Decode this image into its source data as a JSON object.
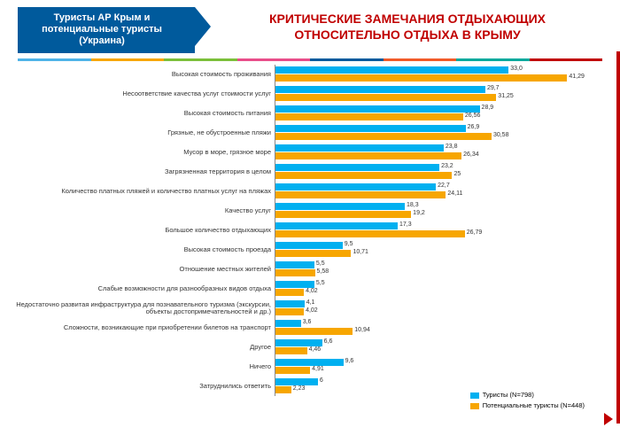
{
  "badge": {
    "line1": "Туристы АР Крым и",
    "line2": "потенциальные туристы",
    "line3": "(Украина)"
  },
  "title": "КРИТИЧЕСКИЕ ЗАМЕЧАНИЯ ОТДЫХАЮЩИХ ОТНОСИТЕЛЬНО ОТДЫХА В КРЫМУ",
  "stripe_colors": [
    "#4fb3e8",
    "#f7a600",
    "#7bbf3a",
    "#e94e8a",
    "#005a9c",
    "#f15a29",
    "#00a99d",
    "#c00000"
  ],
  "chart": {
    "type": "bar",
    "max": 45,
    "bar_colors": [
      "#00b0f0",
      "#f7a600"
    ],
    "value_color": "#333333",
    "label_fontsize": 7.5,
    "value_fontsize": 7,
    "series": [
      {
        "name": "Туристы (N=798)",
        "color": "#00b0f0"
      },
      {
        "name": "Потенциальные туристы (N=448)",
        "color": "#f7a600"
      }
    ],
    "rows": [
      {
        "label": "Высокая стоимость проживания",
        "v": [
          33.0,
          41.29
        ]
      },
      {
        "label": "Несоответствие качества услуг стоимости услуг",
        "v": [
          29.7,
          31.25
        ]
      },
      {
        "label": "Высокая стоимость питания",
        "v": [
          28.9,
          26.56
        ]
      },
      {
        "label": "Грязные, не обустроенные пляжи",
        "v": [
          26.9,
          30.58
        ]
      },
      {
        "label": "Мусор в море, грязное море",
        "v": [
          23.8,
          26.34
        ]
      },
      {
        "label": "Загрязненная территория в целом",
        "v": [
          23.2,
          25
        ]
      },
      {
        "label": "Количество платных пляжей и количество платных услуг на пляжах",
        "v": [
          22.7,
          24.11
        ]
      },
      {
        "label": "Качество услуг",
        "v": [
          18.3,
          19.2
        ]
      },
      {
        "label": "Большое количество отдыхающих",
        "v": [
          17.3,
          26.79
        ]
      },
      {
        "label": "Высокая стоимость проезда",
        "v": [
          9.5,
          10.71
        ]
      },
      {
        "label": "Отношение местных жителей",
        "v": [
          5.5,
          5.58
        ]
      },
      {
        "label": "Слабые возможности для разнообразных видов отдыха",
        "v": [
          5.5,
          4.02
        ]
      },
      {
        "label": "Недостаточно развитая инфраструктура для познавательного туризма (экскурсии, объекты достопримечательностей и др.)",
        "v": [
          4.1,
          4.02
        ]
      },
      {
        "label": "Сложности, возникающие при приобретении билетов на транспорт",
        "v": [
          3.6,
          10.94
        ]
      },
      {
        "label": "Другое",
        "v": [
          6.6,
          4.46
        ]
      },
      {
        "label": "Ничего",
        "v": [
          9.6,
          4.91
        ]
      },
      {
        "label": "Затруднились ответить",
        "v": [
          6.0,
          2.23
        ]
      }
    ]
  },
  "legend": {
    "s1": "Туристы (N=798)",
    "s2": "Потенциальные туристы (N=448)"
  }
}
